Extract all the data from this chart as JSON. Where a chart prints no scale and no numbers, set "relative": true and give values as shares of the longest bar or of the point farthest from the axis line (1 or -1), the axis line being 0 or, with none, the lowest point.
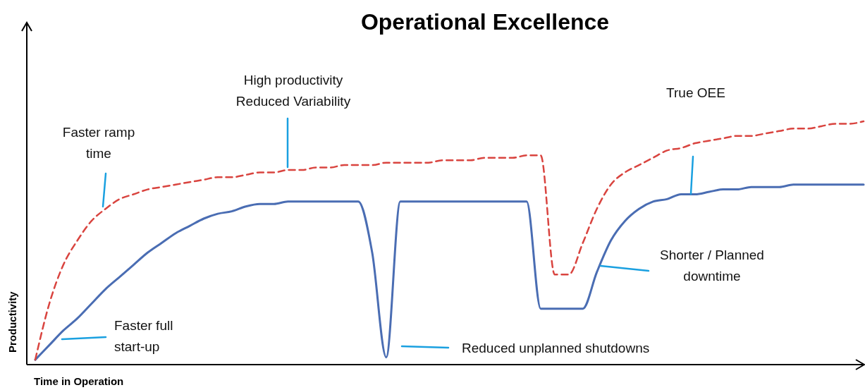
{
  "chart_data": {
    "type": "line",
    "title": "Operational Excellence",
    "xlabel": "Time in Operation",
    "ylabel": "Productivity",
    "relative": true,
    "categories": [
      null,
      null,
      null,
      null,
      null,
      null,
      null,
      null,
      null,
      null,
      null,
      null,
      null,
      null,
      null,
      null,
      null,
      null,
      null,
      null,
      null,
      null,
      null,
      null,
      null,
      null,
      null,
      null,
      null,
      null,
      null,
      null,
      null,
      null,
      null,
      null,
      null,
      null,
      null,
      null,
      null,
      null,
      null,
      null,
      null,
      null,
      null,
      null,
      null,
      null,
      null,
      null,
      null,
      null,
      null,
      null,
      null,
      null,
      null,
      null
    ],
    "series": [
      {
        "color": "#4a6db3",
        "line_style": "solid",
        "values": [
          0.02,
          0.08,
          0.14,
          0.19,
          0.25,
          0.31,
          0.36,
          0.41,
          0.46,
          0.5,
          0.54,
          0.57,
          0.6,
          0.62,
          0.63,
          0.65,
          0.66,
          0.66,
          0.67,
          0.67,
          0.67,
          0.67,
          0.67,
          0.67,
          0.46,
          0.03,
          0.67,
          0.67,
          0.67,
          0.67,
          0.67,
          0.67,
          0.67,
          0.67,
          0.67,
          0.67,
          0.23,
          0.23,
          0.23,
          0.23,
          0.38,
          0.51,
          0.59,
          0.64,
          0.67,
          0.68,
          0.7,
          0.7,
          0.71,
          0.72,
          0.72,
          0.73,
          0.73,
          0.73,
          0.74,
          0.74,
          0.74,
          0.74,
          0.74,
          0.74
        ]
      },
      {
        "color": "#d9443f",
        "line_style": "dashed",
        "values": [
          0.02,
          0.25,
          0.41,
          0.51,
          0.59,
          0.64,
          0.68,
          0.7,
          0.72,
          0.73,
          0.74,
          0.75,
          0.76,
          0.77,
          0.77,
          0.78,
          0.79,
          0.79,
          0.8,
          0.8,
          0.81,
          0.81,
          0.82,
          0.82,
          0.82,
          0.83,
          0.83,
          0.83,
          0.83,
          0.84,
          0.84,
          0.84,
          0.85,
          0.85,
          0.85,
          0.86,
          0.86,
          0.37,
          0.37,
          0.5,
          0.64,
          0.74,
          0.79,
          0.82,
          0.85,
          0.88,
          0.89,
          0.91,
          0.92,
          0.93,
          0.94,
          0.94,
          0.95,
          0.96,
          0.97,
          0.97,
          0.98,
          0.99,
          0.99,
          1.0
        ]
      }
    ],
    "annotations": [
      "Faster ramp\ntime",
      "High productivity\nReduced Variability",
      "True OEE",
      "Faster full\nstart-up",
      "Reduced unplanned shutdowns",
      "Shorter / Planned\ndowntime"
    ]
  }
}
